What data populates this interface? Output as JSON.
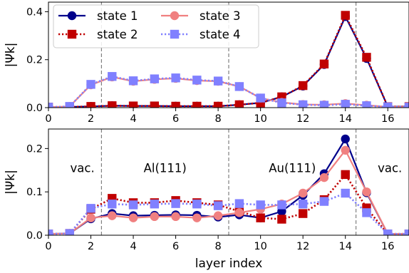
{
  "chart_data": [
    {
      "type": "line",
      "xlabel": "",
      "ylabel": "|Ψk|",
      "xlim": [
        0,
        17
      ],
      "ylim": [
        0,
        0.44
      ],
      "xticks": [
        0,
        2,
        4,
        6,
        8,
        10,
        12,
        14,
        16
      ],
      "yticks": [
        0.0,
        0.2,
        0.4
      ],
      "ytick_labels": [
        "0.0",
        "0.2",
        "0.4"
      ],
      "vlines": [
        2.5,
        8.5,
        14.5
      ],
      "legend": {
        "placement": "top-left",
        "columns": 2
      },
      "annotations": [],
      "x": [
        0,
        1,
        2,
        3,
        4,
        5,
        6,
        7,
        8,
        9,
        10,
        11,
        12,
        13,
        14,
        15,
        16,
        17
      ],
      "series": [
        {
          "name": "state 1",
          "color": "#00008b",
          "marker": "circle",
          "line": "solid",
          "values": [
            0.002,
            0.003,
            0.005,
            0.008,
            0.007,
            0.007,
            0.006,
            0.006,
            0.006,
            0.012,
            0.02,
            0.045,
            0.09,
            0.18,
            0.38,
            0.205,
            0.004,
            0.004
          ]
        },
        {
          "name": "state 2",
          "color": "#c00000",
          "marker": "square",
          "line": "dotted",
          "values": [
            0.002,
            0.003,
            0.005,
            0.008,
            0.007,
            0.007,
            0.006,
            0.006,
            0.006,
            0.012,
            0.02,
            0.045,
            0.092,
            0.182,
            0.385,
            0.21,
            0.004,
            0.004
          ]
        },
        {
          "name": "state 3",
          "color": "#f08080",
          "marker": "circle",
          "line": "solid",
          "values": [
            0.002,
            0.005,
            0.095,
            0.128,
            0.11,
            0.118,
            0.122,
            0.113,
            0.11,
            0.088,
            0.04,
            0.022,
            0.013,
            0.012,
            0.017,
            0.01,
            0.003,
            0.002
          ]
        },
        {
          "name": "state 4",
          "color": "#8080ff",
          "marker": "square",
          "line": "dotted",
          "values": [
            0.002,
            0.005,
            0.097,
            0.13,
            0.112,
            0.12,
            0.124,
            0.115,
            0.111,
            0.088,
            0.04,
            0.02,
            0.012,
            0.01,
            0.014,
            0.008,
            0.003,
            0.002
          ]
        }
      ]
    },
    {
      "type": "line",
      "xlabel": "layer index",
      "ylabel": "|Ψk|",
      "xlim": [
        0,
        17
      ],
      "ylim": [
        0,
        0.245
      ],
      "xticks": [
        0,
        2,
        4,
        6,
        8,
        10,
        12,
        14,
        16
      ],
      "yticks": [
        0.0,
        0.1,
        0.2
      ],
      "ytick_labels": [
        "0.0",
        "0.1",
        "0.2"
      ],
      "vlines": [
        2.5,
        8.5,
        14.5
      ],
      "annotations": [
        {
          "text": "vac.",
          "x": 1.6,
          "y": 0.155
        },
        {
          "text": "Al(111)",
          "x": 5.5,
          "y": 0.155
        },
        {
          "text": "Au(111)",
          "x": 11.5,
          "y": 0.155
        },
        {
          "text": "vac.",
          "x": 16.1,
          "y": 0.155
        }
      ],
      "x": [
        0,
        1,
        2,
        3,
        4,
        5,
        6,
        7,
        8,
        9,
        10,
        11,
        12,
        13,
        14,
        15,
        16,
        17
      ],
      "series": [
        {
          "name": "state 1",
          "color": "#00008b",
          "marker": "circle",
          "line": "solid",
          "values": [
            0.003,
            0.004,
            0.038,
            0.05,
            0.045,
            0.046,
            0.047,
            0.046,
            0.042,
            0.047,
            0.04,
            0.055,
            0.092,
            0.142,
            0.222,
            0.098,
            0.003,
            0.003
          ]
        },
        {
          "name": "state 2",
          "color": "#c00000",
          "marker": "square",
          "line": "dotted",
          "values": [
            0.003,
            0.004,
            0.06,
            0.085,
            0.075,
            0.075,
            0.08,
            0.075,
            0.07,
            0.055,
            0.04,
            0.037,
            0.05,
            0.082,
            0.14,
            0.063,
            0.003,
            0.003
          ]
        },
        {
          "name": "state 3",
          "color": "#f08080",
          "marker": "circle",
          "line": "solid",
          "values": [
            0.003,
            0.004,
            0.04,
            0.045,
            0.04,
            0.043,
            0.043,
            0.04,
            0.045,
            0.052,
            0.06,
            0.072,
            0.097,
            0.133,
            0.196,
            0.1,
            0.003,
            0.003
          ]
        },
        {
          "name": "state 4",
          "color": "#8080ff",
          "marker": "square",
          "line": "dotted",
          "values": [
            0.003,
            0.004,
            0.062,
            0.072,
            0.07,
            0.072,
            0.073,
            0.072,
            0.068,
            0.073,
            0.07,
            0.07,
            0.072,
            0.078,
            0.097,
            0.052,
            0.003,
            0.003
          ]
        }
      ]
    }
  ]
}
